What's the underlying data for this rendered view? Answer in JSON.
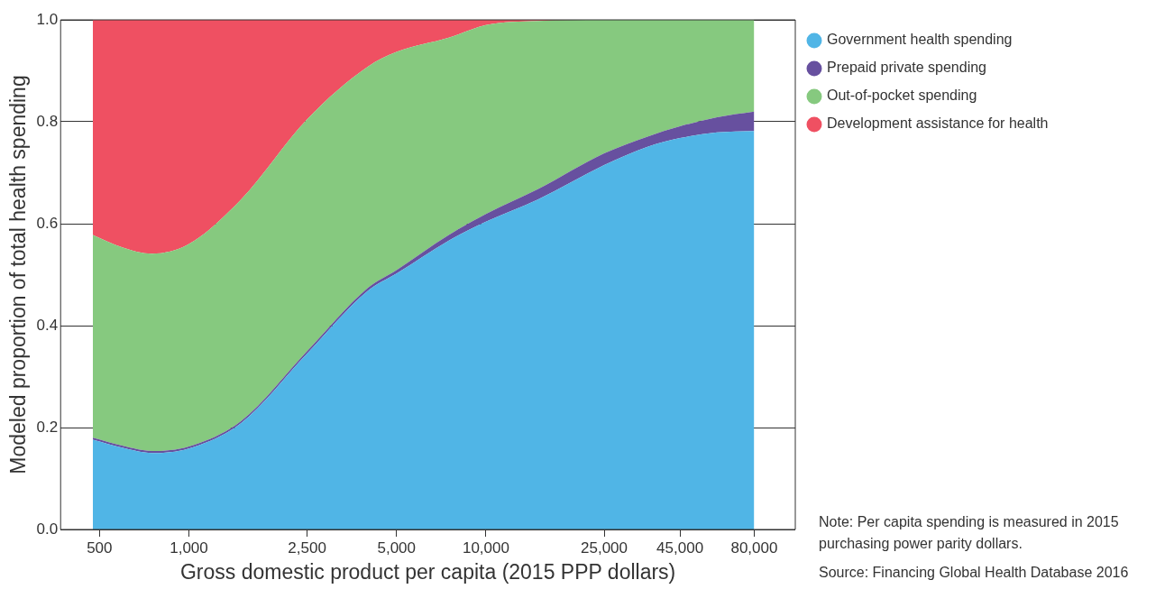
{
  "chart_data": {
    "type": "area",
    "stacked": true,
    "log": "x",
    "xlabel": "Gross domestic product per capita (2015 PPP dollars)",
    "ylabel": "Modeled proportion of total health spending",
    "x": [
      475,
      600,
      750,
      1000,
      1500,
      2500,
      4000,
      5000,
      7500,
      10000,
      15000,
      25000,
      35000,
      45000,
      60000,
      80000
    ],
    "series": [
      {
        "name": "Government health spending",
        "color": "#50b5e6",
        "values": [
          0.176,
          0.16,
          0.15,
          0.159,
          0.209,
          0.345,
          0.468,
          0.502,
          0.567,
          0.604,
          0.648,
          0.715,
          0.751,
          0.768,
          0.779,
          0.782
        ]
      },
      {
        "name": "Prepaid private spending",
        "color": "#67509f",
        "values": [
          0.004,
          0.004,
          0.004,
          0.004,
          0.004,
          0.005,
          0.006,
          0.007,
          0.011,
          0.015,
          0.02,
          0.023,
          0.02,
          0.023,
          0.03,
          0.038
        ]
      },
      {
        "name": "Out-of-pocket spending",
        "color": "#86c97f",
        "values": [
          0.398,
          0.389,
          0.387,
          0.397,
          0.435,
          0.455,
          0.434,
          0.428,
          0.387,
          0.371,
          0.33,
          0.262,
          0.229,
          0.209,
          0.191,
          0.18
        ]
      },
      {
        "name": "Development assistance for health",
        "color": "#ef5062",
        "values": [
          0.422,
          0.447,
          0.459,
          0.44,
          0.352,
          0.195,
          0.092,
          0.063,
          0.035,
          0.01,
          0.002,
          0,
          0,
          0,
          0,
          0
        ]
      }
    ],
    "xlim": [
      370,
      110000
    ],
    "xticks": [
      500,
      {
        "value": 1000,
        "label": "1,000"
      },
      {
        "value": 2500,
        "label": "2,500"
      },
      {
        "value": 5000,
        "label": "5,000"
      },
      {
        "value": 10000,
        "label": "10,000"
      },
      {
        "value": 25000,
        "label": "25,000"
      },
      {
        "value": 45000,
        "label": "45,000"
      },
      {
        "value": 80000,
        "label": "80,000"
      }
    ],
    "ylim": [
      0,
      1
    ],
    "yticks": [
      {
        "value": 0,
        "label": "0.0"
      },
      0.2,
      0.4,
      0.6,
      0.8,
      {
        "value": 1,
        "label": "1.0"
      }
    ],
    "grid": "y",
    "legend": "top right",
    "annotations": [
      "Note: Per capita spending is measured in 2015 purchasing power parity dollars.",
      "Source: Financing Global Health Database 2016"
    ]
  }
}
